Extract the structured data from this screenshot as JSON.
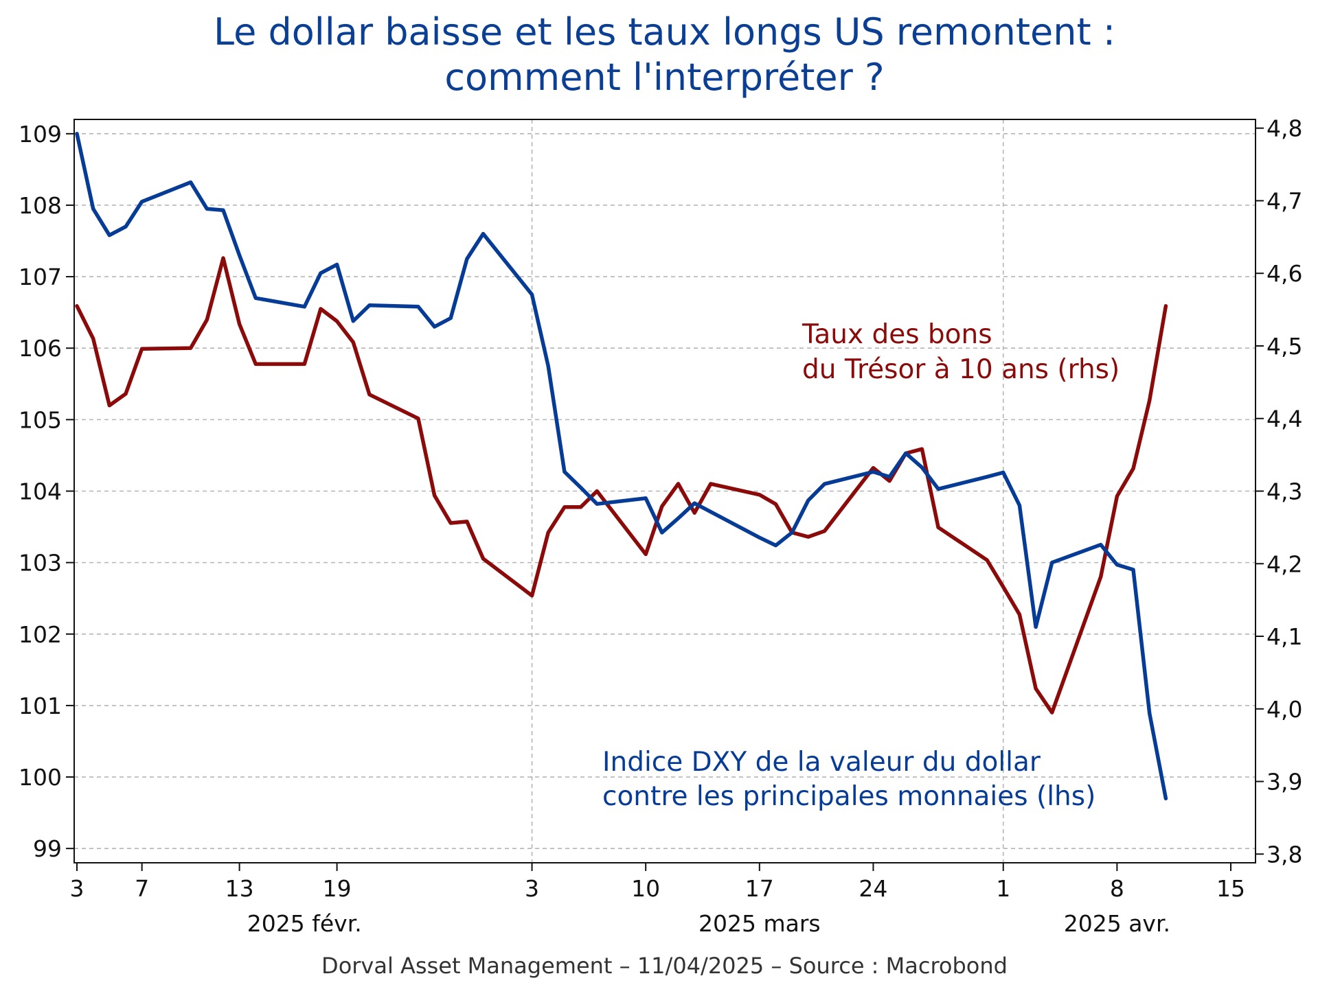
{
  "title_lines": [
    "Le dollar baisse et les taux longs US remontent :",
    "comment l'interpréter ?"
  ],
  "footer": "Dorval Asset Management – 11/04/2025 –   Source : Macrobond",
  "chart_data": {
    "type": "line",
    "grid": true,
    "y_left": {
      "ylim": [
        98.8,
        109.2
      ],
      "ticks": [
        109,
        108,
        107,
        106,
        105,
        104,
        103,
        102,
        101,
        100,
        99
      ]
    },
    "y_right": {
      "ylim": [
        3.788,
        4.812
      ],
      "ticks": [
        "4,8",
        "4,7",
        "4,6",
        "4,5",
        "4,4",
        "4,3",
        "4,2",
        "4,1",
        "4,0",
        "3,9",
        "3,8"
      ]
    },
    "x_axis": {
      "range": [
        "2025-02-03",
        "2025-04-15"
      ],
      "ticks": [
        {
          "date": "2025-02-03",
          "label": "3"
        },
        {
          "date": "2025-02-07",
          "label": "7"
        },
        {
          "date": "2025-02-13",
          "label": "13"
        },
        {
          "date": "2025-02-19",
          "label": "19"
        },
        {
          "date": "2025-03-03",
          "label": "3"
        },
        {
          "date": "2025-03-10",
          "label": "10"
        },
        {
          "date": "2025-03-17",
          "label": "17"
        },
        {
          "date": "2025-03-24",
          "label": "24"
        },
        {
          "date": "2025-04-01",
          "label": "1"
        },
        {
          "date": "2025-04-08",
          "label": "8"
        },
        {
          "date": "2025-04-15",
          "label": "15"
        }
      ],
      "months": [
        {
          "label": "2025 févr.",
          "center": "2025-02-17"
        },
        {
          "label": "2025 mars",
          "center": "2025-03-17"
        },
        {
          "label": "2025 avr.",
          "center": "2025-04-08"
        }
      ],
      "gridlines": [
        "2025-03-03",
        "2025-04-01"
      ]
    },
    "dates": [
      "2025-02-03",
      "2025-02-04",
      "2025-02-05",
      "2025-02-06",
      "2025-02-07",
      "2025-02-10",
      "2025-02-11",
      "2025-02-12",
      "2025-02-13",
      "2025-02-14",
      "2025-02-17",
      "2025-02-18",
      "2025-02-19",
      "2025-02-20",
      "2025-02-21",
      "2025-02-24",
      "2025-02-25",
      "2025-02-26",
      "2025-02-27",
      "2025-02-28",
      "2025-03-03",
      "2025-03-04",
      "2025-03-05",
      "2025-03-06",
      "2025-03-07",
      "2025-03-10",
      "2025-03-11",
      "2025-03-12",
      "2025-03-13",
      "2025-03-14",
      "2025-03-17",
      "2025-03-18",
      "2025-03-19",
      "2025-03-20",
      "2025-03-21",
      "2025-03-24",
      "2025-03-25",
      "2025-03-26",
      "2025-03-27",
      "2025-03-28",
      "2025-03-31",
      "2025-04-01",
      "2025-04-02",
      "2025-04-03",
      "2025-04-04",
      "2025-04-07",
      "2025-04-08",
      "2025-04-09",
      "2025-04-10",
      "2025-04-11"
    ],
    "series": [
      {
        "name": "Taux des bons du Trésor à 10 ans (rhs)",
        "axis": "right",
        "color": "#8b0a0a",
        "values": [
          4.555,
          4.51,
          4.418,
          4.434,
          4.496,
          4.497,
          4.536,
          4.621,
          4.53,
          4.475,
          4.475,
          4.551,
          4.534,
          4.505,
          4.433,
          4.4,
          4.294,
          4.256,
          4.258,
          4.207,
          4.156,
          4.243,
          4.278,
          4.278,
          4.3,
          4.213,
          4.279,
          4.31,
          4.27,
          4.31,
          4.295,
          4.282,
          4.243,
          4.237,
          4.245,
          4.332,
          4.314,
          4.352,
          4.358,
          4.25,
          4.205,
          4.168,
          4.13,
          4.028,
          3.995,
          4.182,
          4.293,
          4.331,
          4.425,
          4.555
        ]
      },
      {
        "name": "Indice DXY de la valeur du dollar contre les principales monnaies (lhs)",
        "axis": "left",
        "color": "#063b96",
        "values": [
          109.0,
          107.95,
          107.58,
          107.7,
          108.05,
          108.32,
          107.95,
          107.93,
          107.3,
          106.7,
          106.58,
          107.05,
          107.17,
          106.38,
          106.6,
          106.58,
          106.3,
          106.42,
          107.25,
          107.6,
          106.75,
          105.75,
          104.27,
          104.05,
          103.82,
          103.9,
          103.42,
          103.62,
          103.83,
          103.71,
          103.35,
          103.24,
          103.42,
          103.87,
          104.1,
          104.27,
          104.2,
          104.53,
          104.33,
          104.03,
          104.2,
          104.26,
          103.8,
          102.1,
          103.0,
          103.25,
          102.97,
          102.9,
          100.89,
          99.7
        ]
      }
    ],
    "annotations": [
      {
        "series": "red",
        "lines": [
          "Taux des bons",
          "du Trésor à 10 ans (rhs)"
        ]
      },
      {
        "series": "blue",
        "lines": [
          "Indice DXY de la valeur du dollar",
          "contre les principales monnaies (lhs)"
        ]
      }
    ]
  }
}
